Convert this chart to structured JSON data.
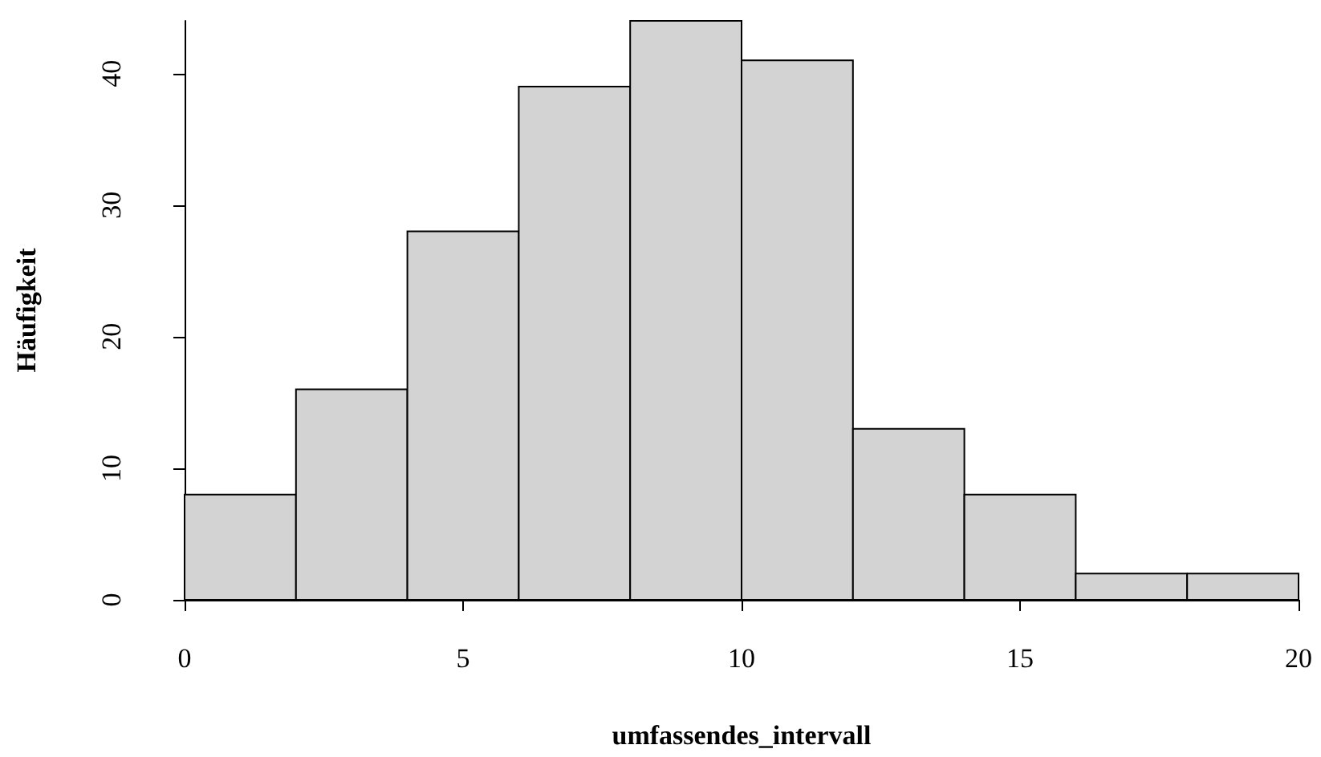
{
  "chart_data": {
    "type": "histogram",
    "xlabel": "umfassendes_intervall",
    "ylabel": "Häufigkeit",
    "bins": [
      0,
      2,
      4,
      6,
      8,
      10,
      12,
      14,
      16,
      18,
      20
    ],
    "values": [
      8,
      16,
      28,
      39,
      44,
      41,
      13,
      8,
      2,
      2
    ],
    "color": "#d3d3d3",
    "xlim": [
      0,
      20
    ],
    "xticks": [
      0,
      5,
      10,
      15,
      20
    ],
    "ylim": [
      0,
      44
    ],
    "yticks": [
      0,
      10,
      20,
      30,
      40
    ],
    "grid": false
  }
}
